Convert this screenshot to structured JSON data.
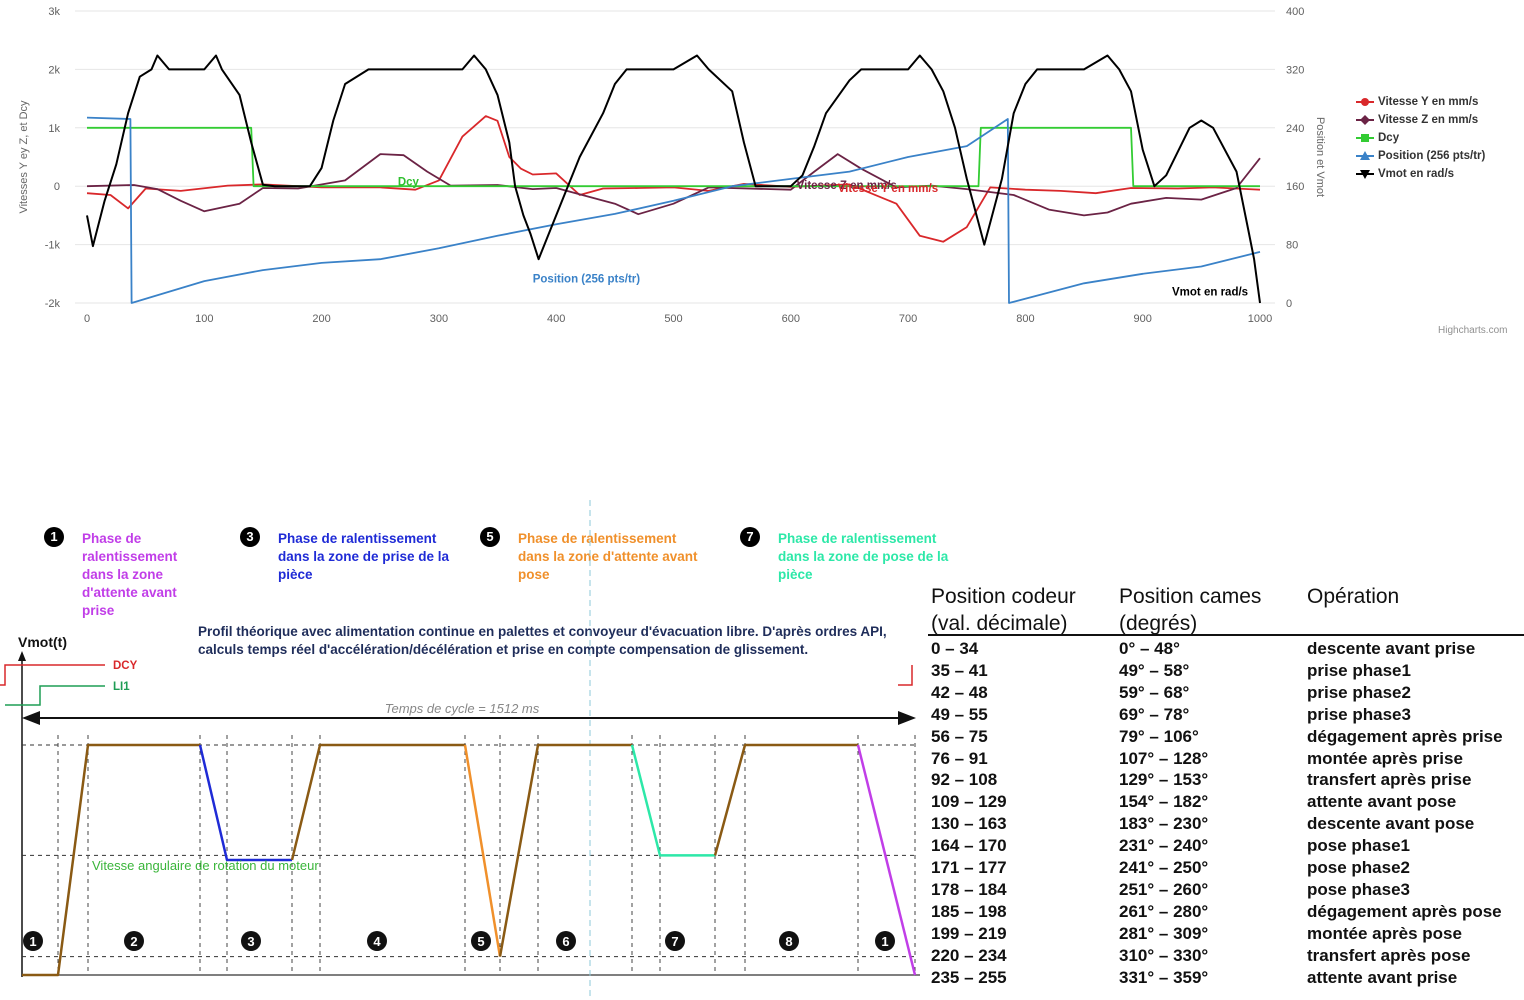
{
  "chart_data": [
    {
      "type": "line",
      "x": [
        0,
        1000
      ],
      "xlim": [
        0,
        1000
      ],
      "x_ticks": [
        "0",
        "100",
        "200",
        "300",
        "400",
        "500",
        "600",
        "700",
        "800",
        "900",
        "1000"
      ],
      "y_left_label": "Vitesses Y ey Z, et Dcy",
      "y_left_ticks": [
        "3k",
        "2k",
        "1k",
        "0",
        "-1k",
        "-2k"
      ],
      "ylim_left": [
        -2000,
        3000
      ],
      "y_right_label": "Position et Vmot",
      "y_right_ticks": [
        "400",
        "320",
        "240",
        "160",
        "80",
        "0"
      ],
      "ylim_right": [
        0,
        400
      ],
      "grid": true,
      "legend_position": "right",
      "series": [
        {
          "name": "Vitesse Y en mm/s",
          "color": "#d9282b",
          "axis": "left",
          "points": [
            [
              0,
              -120
            ],
            [
              20,
              -150
            ],
            [
              35,
              -380
            ],
            [
              50,
              -40
            ],
            [
              80,
              -80
            ],
            [
              120,
              10
            ],
            [
              150,
              30
            ],
            [
              200,
              -20
            ],
            [
              250,
              -20
            ],
            [
              280,
              -60
            ],
            [
              300,
              100
            ],
            [
              320,
              850
            ],
            [
              340,
              1200
            ],
            [
              350,
              1120
            ],
            [
              360,
              500
            ],
            [
              370,
              300
            ],
            [
              380,
              200
            ],
            [
              400,
              220
            ],
            [
              420,
              -150
            ],
            [
              440,
              -40
            ],
            [
              470,
              -30
            ],
            [
              500,
              -20
            ],
            [
              530,
              -80
            ],
            [
              560,
              40
            ],
            [
              600,
              -10
            ],
            [
              650,
              30
            ],
            [
              690,
              -300
            ],
            [
              710,
              -850
            ],
            [
              730,
              -950
            ],
            [
              750,
              -700
            ],
            [
              770,
              -20
            ],
            [
              800,
              -60
            ],
            [
              830,
              -80
            ],
            [
              860,
              -120
            ],
            [
              890,
              -30
            ],
            [
              930,
              -40
            ],
            [
              960,
              -20
            ],
            [
              990,
              -50
            ],
            [
              1000,
              -60
            ]
          ]
        },
        {
          "name": "Vitesse Z en mm/s",
          "color": "#6b2345",
          "axis": "left",
          "points": [
            [
              0,
              0
            ],
            [
              40,
              20
            ],
            [
              60,
              -50
            ],
            [
              80,
              -250
            ],
            [
              100,
              -430
            ],
            [
              130,
              -300
            ],
            [
              150,
              -30
            ],
            [
              180,
              -40
            ],
            [
              220,
              100
            ],
            [
              250,
              550
            ],
            [
              270,
              530
            ],
            [
              290,
              250
            ],
            [
              310,
              10
            ],
            [
              350,
              20
            ],
            [
              380,
              -50
            ],
            [
              400,
              -30
            ],
            [
              450,
              -300
            ],
            [
              470,
              -480
            ],
            [
              500,
              -300
            ],
            [
              530,
              -20
            ],
            [
              600,
              -60
            ],
            [
              620,
              250
            ],
            [
              640,
              550
            ],
            [
              660,
              300
            ],
            [
              690,
              -20
            ],
            [
              720,
              10
            ],
            [
              750,
              -50
            ],
            [
              790,
              -150
            ],
            [
              820,
              -400
            ],
            [
              850,
              -500
            ],
            [
              870,
              -450
            ],
            [
              890,
              -300
            ],
            [
              920,
              -200
            ],
            [
              950,
              -230
            ],
            [
              980,
              -30
            ],
            [
              1000,
              480
            ]
          ]
        },
        {
          "name": "Dcy",
          "color": "#33cc33",
          "axis": "left",
          "points": [
            [
              0,
              1000
            ],
            [
              140,
              1000
            ],
            [
              142,
              0
            ],
            [
              760,
              0
            ],
            [
              762,
              1000
            ],
            [
              890,
              1000
            ],
            [
              892,
              0
            ],
            [
              1000,
              0
            ]
          ]
        },
        {
          "name": "Position (256 pts/tr)",
          "color": "#3a82c8",
          "axis": "right",
          "points": [
            [
              0,
              254
            ],
            [
              37,
              252
            ],
            [
              38,
              0
            ],
            [
              100,
              30
            ],
            [
              150,
              45
            ],
            [
              200,
              55
            ],
            [
              250,
              60
            ],
            [
              300,
              75
            ],
            [
              350,
              92
            ],
            [
              400,
              108
            ],
            [
              450,
              122
            ],
            [
              500,
              140
            ],
            [
              550,
              160
            ],
            [
              600,
              170
            ],
            [
              650,
              180
            ],
            [
              700,
              200
            ],
            [
              750,
              215
            ],
            [
              785,
              252
            ],
            [
              786,
              0
            ],
            [
              850,
              27
            ],
            [
              900,
              40
            ],
            [
              950,
              50
            ],
            [
              1000,
              70
            ]
          ]
        },
        {
          "name": "Vmot en rad/s",
          "color": "#000000",
          "axis": "right",
          "points": [
            [
              0,
              120
            ],
            [
              5,
              78
            ],
            [
              15,
              140
            ],
            [
              25,
              190
            ],
            [
              35,
              260
            ],
            [
              45,
              310
            ],
            [
              55,
              320
            ],
            [
              60,
              339
            ],
            [
              70,
              320
            ],
            [
              100,
              320
            ],
            [
              110,
              339
            ],
            [
              115,
              320
            ],
            [
              130,
              285
            ],
            [
              140,
              220
            ],
            [
              150,
              162
            ],
            [
              160,
              160
            ],
            [
              190,
              160
            ],
            [
              200,
              185
            ],
            [
              210,
              250
            ],
            [
              220,
              300
            ],
            [
              240,
              320
            ],
            [
              320,
              320
            ],
            [
              330,
              339
            ],
            [
              340,
              320
            ],
            [
              350,
              285
            ],
            [
              360,
              220
            ],
            [
              365,
              160
            ],
            [
              372,
              120
            ],
            [
              378,
              95
            ],
            [
              385,
              60
            ],
            [
              395,
              100
            ],
            [
              410,
              160
            ],
            [
              420,
              200
            ],
            [
              440,
              260
            ],
            [
              450,
              300
            ],
            [
              460,
              320
            ],
            [
              500,
              320
            ],
            [
              520,
              339
            ],
            [
              530,
              320
            ],
            [
              550,
              290
            ],
            [
              560,
              220
            ],
            [
              570,
              160
            ],
            [
              600,
              160
            ],
            [
              610,
              175
            ],
            [
              620,
              215
            ],
            [
              630,
              260
            ],
            [
              650,
              305
            ],
            [
              660,
              320
            ],
            [
              700,
              320
            ],
            [
              710,
              339
            ],
            [
              720,
              320
            ],
            [
              730,
              290
            ],
            [
              740,
              240
            ],
            [
              750,
              170
            ],
            [
              760,
              110
            ],
            [
              765,
              80
            ],
            [
              770,
              110
            ],
            [
              780,
              170
            ],
            [
              790,
              260
            ],
            [
              800,
              300
            ],
            [
              810,
              320
            ],
            [
              850,
              320
            ],
            [
              870,
              339
            ],
            [
              880,
              320
            ],
            [
              890,
              290
            ],
            [
              900,
              210
            ],
            [
              910,
              160
            ],
            [
              920,
              175
            ],
            [
              940,
              240
            ],
            [
              950,
              250
            ],
            [
              960,
              240
            ],
            [
              980,
              180
            ],
            [
              990,
              100
            ],
            [
              995,
              60
            ],
            [
              1000,
              0
            ]
          ]
        }
      ],
      "annotations": [
        {
          "text": "Dcy",
          "x": 265,
          "y": 10,
          "color": "#2fbf2f"
        },
        {
          "text": "Position (256 pts/tr)",
          "x": 380,
          "y": 28,
          "color": "#3a82c8"
        },
        {
          "text": "Vitesse Z en mm/s",
          "x": 605,
          "y": -52,
          "color": "#6b2345"
        },
        {
          "text": "Vitesse Y en mm/s",
          "x": 640,
          "y": -100,
          "color": "#d9282b"
        },
        {
          "text": "Vmot en rad/s",
          "x": 925,
          "y": 10,
          "color": "#000000"
        }
      ],
      "credit": "Highcharts.com"
    },
    {
      "type": "line",
      "title": "",
      "subtitle": "",
      "y_label": "Vmot(t)",
      "x_label": "Temps de cycle = 1512 ms",
      "signals": [
        "DCY",
        "LI1"
      ],
      "inner_label": "Vitesse angulaire de rotation du moteur",
      "zone_labels": [
        "1",
        "2",
        "3",
        "4",
        "5",
        "6",
        "7",
        "8",
        "1"
      ],
      "segments": [
        {
          "color": "#8a5a14",
          "points": [
            [
              0,
              0
            ],
            [
              1,
              0
            ],
            [
              2,
              1
            ],
            [
              3,
              1
            ]
          ]
        },
        {
          "color": "#1f2bd6",
          "points": [
            [
              3,
              1
            ],
            [
              4,
              0.5
            ],
            [
              5,
              0.5
            ]
          ]
        },
        {
          "color": "#8a5a14",
          "points": [
            [
              5,
              0.5
            ],
            [
              6,
              1
            ],
            [
              7,
              1
            ]
          ]
        },
        {
          "color": "#f0902b",
          "points": [
            [
              7,
              1
            ],
            [
              8,
              0.08
            ]
          ]
        },
        {
          "color": "#8a5a14",
          "points": [
            [
              8,
              0.08
            ],
            [
              9,
              1
            ],
            [
              10,
              1
            ]
          ]
        },
        {
          "color": "#2de8a8",
          "points": [
            [
              10,
              1
            ],
            [
              11,
              0.52
            ],
            [
              12,
              0.52
            ]
          ]
        },
        {
          "color": "#8a5a14",
          "points": [
            [
              12,
              0.52
            ],
            [
              13,
              1
            ],
            [
              14,
              1
            ]
          ]
        },
        {
          "color": "#c13ee8",
          "points": [
            [
              14,
              1
            ],
            [
              15,
              0
            ]
          ]
        }
      ]
    }
  ],
  "legend": [
    {
      "label": "Vitesse Y en mm/s",
      "color": "#d9282b",
      "marker": "circle"
    },
    {
      "label": "Vitesse Z en mm/s",
      "color": "#6b2345",
      "marker": "diamond"
    },
    {
      "label": "Dcy",
      "color": "#33cc33",
      "marker": "square"
    },
    {
      "label": "Position (256 pts/tr)",
      "color": "#3a82c8",
      "marker": "triangle"
    },
    {
      "label": "Vmot en rad/s",
      "color": "#000000",
      "marker": "triangle-down"
    }
  ],
  "phases": [
    {
      "num": "1",
      "text": "Phase de ralentissement dans la zone d'attente avant prise",
      "color": "#c13ee8"
    },
    {
      "num": "3",
      "text": "Phase de ralentissement dans la zone de prise de la pièce",
      "color": "#1f2bd6"
    },
    {
      "num": "5",
      "text": "Phase de ralentissement dans la zone d'attente avant pose",
      "color": "#f0902b"
    },
    {
      "num": "7",
      "text": "Phase de ralentissement dans la zone de pose de la pièce",
      "color": "#2de8a8"
    }
  ],
  "profil_text": "Profil théorique avec alimentation continue en palettes et convoyeur d'évacuation libre. D'après ordres API, calculs temps réel d'accélération/décélération et prise en compte compensation de glissement.",
  "cams_table": {
    "headers": [
      "Position codeur (val. décimale)",
      "Position cames (degrés)",
      "Opération"
    ],
    "rows": [
      [
        "0 – 34",
        "0° – 48°",
        "descente avant prise"
      ],
      [
        "35 – 41",
        "49° – 58°",
        "prise phase1"
      ],
      [
        "42 – 48",
        "59° – 68°",
        "prise phase2"
      ],
      [
        "49 – 55",
        "69° – 78°",
        "prise phase3"
      ],
      [
        "56 – 75",
        "79° – 106°",
        "dégagement après prise"
      ],
      [
        "76 – 91",
        "107° – 128°",
        "montée après prise"
      ],
      [
        "92 – 108",
        "129° – 153°",
        "transfert après prise"
      ],
      [
        "109 – 129",
        "154° – 182°",
        "attente avant pose"
      ],
      [
        "130 – 163",
        "183° – 230°",
        "descente avant pose"
      ],
      [
        "164 – 170",
        "231° – 240°",
        "pose phase1"
      ],
      [
        "171 – 177",
        "241° – 250°",
        "pose phase2"
      ],
      [
        "178 – 184",
        "251° – 260°",
        "pose phase3"
      ],
      [
        "185 – 198",
        "261° – 280°",
        "dégagement après pose"
      ],
      [
        "199 – 219",
        "281° – 309°",
        "montée après pose"
      ],
      [
        "220 – 234",
        "310° – 330°",
        "transfert après pose"
      ],
      [
        "235 – 255",
        "331° – 359°",
        "attente avant prise"
      ]
    ]
  }
}
